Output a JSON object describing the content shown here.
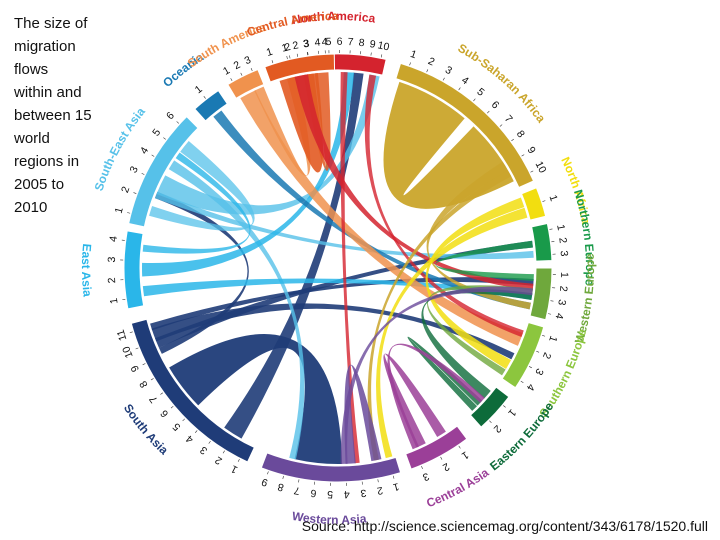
{
  "caption": "The size of\nmigration\nflows\nwithin and\nbetween 15\nworld\nregions in\n2005 to\n2010",
  "source": "Source: http://science.sciencemag.org/content/343/6178/1520.full",
  "regions": [
    {
      "name": "North America",
      "color": "#d4232e",
      "start": -15,
      "end": 13,
      "ticks": [
        "1",
        "2",
        "3",
        "4",
        "5",
        "6",
        "7",
        "8",
        "9",
        "10"
      ]
    },
    {
      "name": "Sub-Saharan Africa",
      "color": "#caa52b",
      "start": 17,
      "end": 66,
      "ticks": [
        "1",
        "2",
        "3",
        "4",
        "5",
        "6",
        "7",
        "8",
        "9",
        "10"
      ]
    },
    {
      "name": "North Africa",
      "color": "#f2de10",
      "start": 68,
      "end": 76,
      "ticks": [
        "1"
      ]
    },
    {
      "name": "Northern Europe",
      "color": "#199a4a",
      "start": 78,
      "end": 88,
      "ticks": [
        "1",
        "2",
        "3"
      ]
    },
    {
      "name": "Western Europe",
      "color": "#6fa83c",
      "start": 90,
      "end": 104,
      "ticks": [
        "1",
        "2",
        "3",
        "4"
      ]
    },
    {
      "name": "Southern Europe",
      "color": "#8cc63e",
      "start": 106,
      "end": 124,
      "ticks": [
        "1",
        "2",
        "3",
        "4"
      ]
    },
    {
      "name": "Eastern Europe",
      "color": "#0d6b3a",
      "start": 127,
      "end": 138,
      "ticks": [
        "1",
        "2"
      ]
    },
    {
      "name": "Central Asia",
      "color": "#9b3f98",
      "start": 143,
      "end": 160,
      "ticks": [
        "1",
        "2",
        "3"
      ]
    },
    {
      "name": "Western Asia",
      "color": "#6a4a9b",
      "start": 163,
      "end": 201,
      "ticks": [
        "1",
        "2",
        "3",
        "4",
        "5",
        "6",
        "7",
        "8",
        "9"
      ]
    },
    {
      "name": "South Asia",
      "color": "#1f3c78",
      "start": 205,
      "end": 255,
      "ticks": [
        "1",
        "2",
        "3",
        "4",
        "5",
        "6",
        "7",
        "8",
        "9",
        "10",
        "11"
      ]
    },
    {
      "name": "East Asia",
      "color": "#2ab6e9",
      "start": 259,
      "end": 280,
      "ticks": [
        "1",
        "2",
        "3",
        "4"
      ]
    },
    {
      "name": "South-East Asia",
      "color": "#56c1e9",
      "start": 282,
      "end": 315,
      "ticks": [
        "1",
        "2",
        "3",
        "4",
        "5",
        "6"
      ]
    },
    {
      "name": "Oceania",
      "color": "#1a79b3",
      "start": 318,
      "end": 326,
      "ticks": [
        "1"
      ]
    },
    {
      "name": "South America",
      "color": "#f0924d",
      "start": 329,
      "end": 338,
      "ticks": [
        "1",
        "2",
        "3"
      ]
    },
    {
      "name": "Central America",
      "color": "#e25a22",
      "start": 340,
      "end": 359,
      "ticks": [
        "1",
        "2",
        "3",
        "4"
      ]
    }
  ]
}
